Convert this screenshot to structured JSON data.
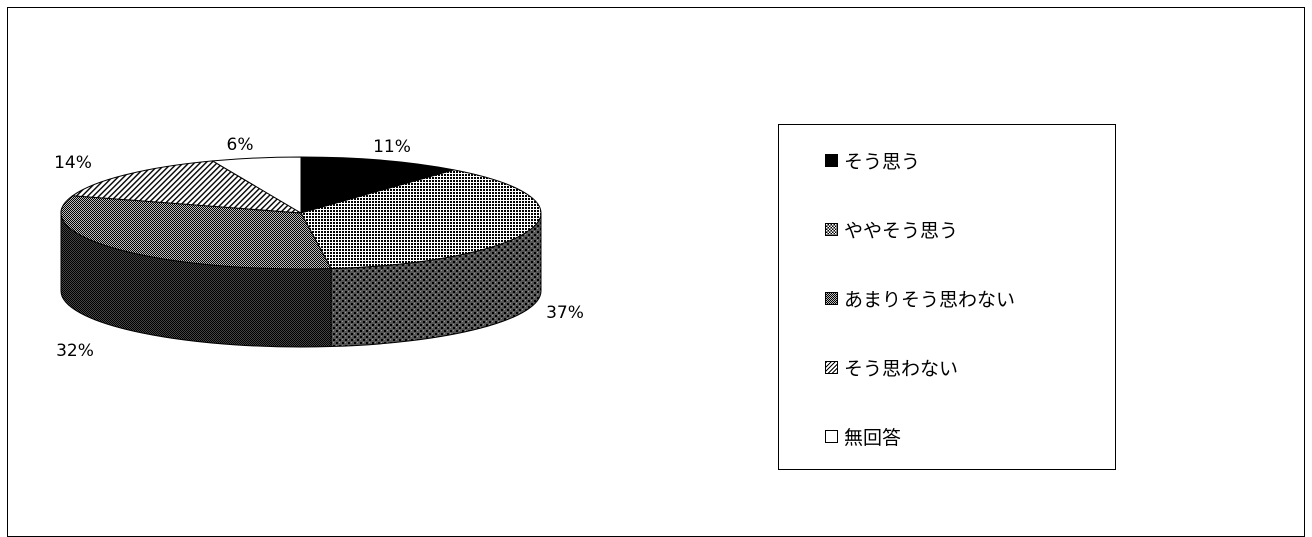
{
  "chart_data": {
    "type": "pie",
    "categories": [
      "そう思う",
      "ややそう思う",
      "あまりそう思わない",
      "そう思わない",
      "無回答"
    ],
    "values": [
      11,
      37,
      32,
      14,
      6
    ],
    "labels": [
      "11%",
      "37%",
      "32%",
      "14%",
      "6%"
    ],
    "legend_position": "right",
    "style": "3d-exploded-none"
  },
  "legend": {
    "items": [
      {
        "label": "そう思う"
      },
      {
        "label": "ややそう思う"
      },
      {
        "label": "あまりそう思わない"
      },
      {
        "label": "そう思わない"
      },
      {
        "label": "無回答"
      }
    ]
  }
}
